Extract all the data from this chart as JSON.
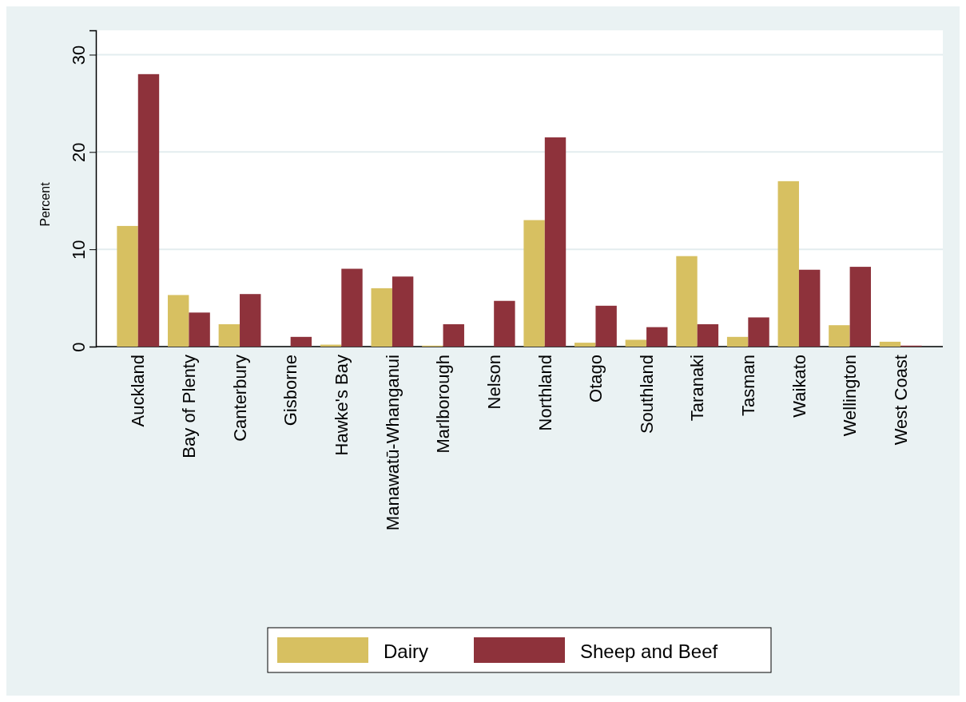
{
  "chart_data": {
    "type": "bar",
    "ylabel": "Percent",
    "categories": [
      "Auckland",
      "Bay of Plenty",
      "Canterbury",
      "Gisborne",
      "Hawke's Bay",
      "Manawatū-Whanganui",
      "Marlborough",
      "Nelson",
      "Northland",
      "Otago",
      "Southland",
      "Taranaki",
      "Tasman",
      "Waikato",
      "Wellington",
      "West Coast"
    ],
    "series": [
      {
        "name": "Dairy",
        "color": "#d7c061",
        "values": [
          12.4,
          5.3,
          2.3,
          0,
          0.2,
          6.0,
          0.1,
          0,
          13.0,
          0.4,
          0.7,
          9.3,
          1.0,
          17.0,
          2.2,
          0.5
        ]
      },
      {
        "name": "Sheep and Beef",
        "color": "#8e323b",
        "values": [
          28.0,
          3.5,
          5.4,
          1.0,
          8.0,
          7.2,
          2.3,
          4.7,
          21.5,
          4.2,
          2.0,
          2.3,
          3.0,
          7.9,
          8.2,
          0.1
        ]
      }
    ],
    "ylim": [
      0,
      32.5
    ],
    "yticks": [
      0,
      10,
      20,
      30
    ],
    "grid": "y",
    "legend": "bottom"
  }
}
